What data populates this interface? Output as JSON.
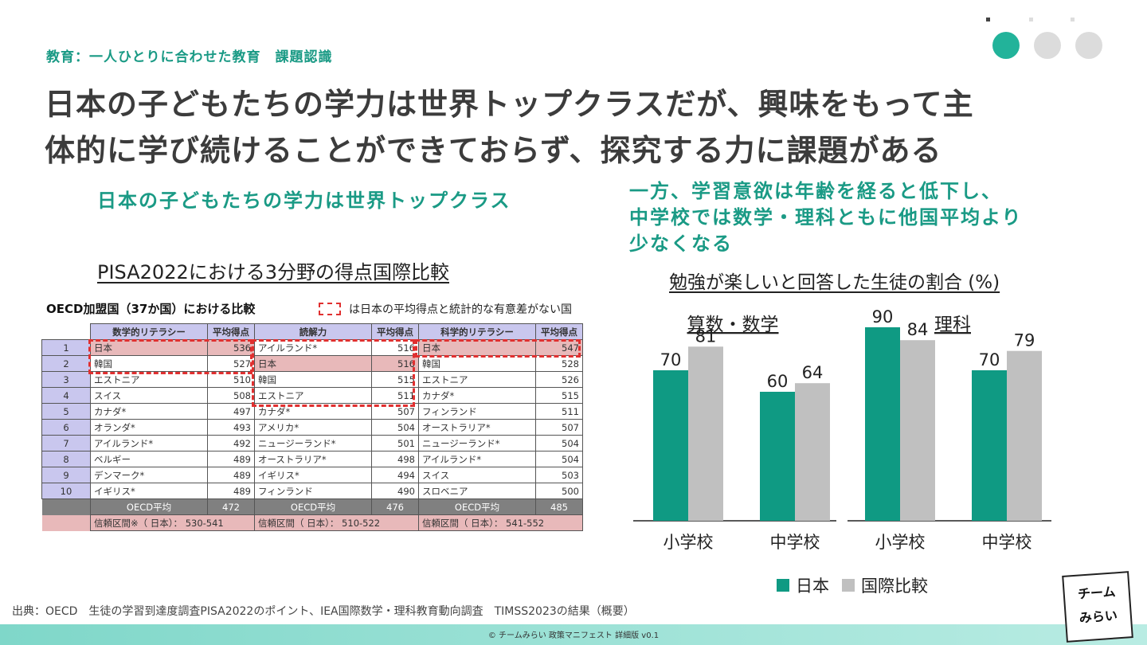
{
  "section_label": "教育：一人ひとりに合わせた教育　課題認識",
  "headline_line1": "日本の子どもたちの学力は世界トップクラスだが、興味をもって主",
  "headline_line2": "体的に学び続けることができておらず、探究する力に課題がある",
  "sub_left": "日本の子どもたちの学力は世界トップクラス",
  "sub_right_1": "一方、学習意欲は年齢を経ると低下し、",
  "sub_right_2": "中学校では数学・理科ともに他国平均より",
  "sub_right_3": "少なくなる",
  "pisa_title": "PISA2022における3分野の得点国際比較",
  "table": {
    "caption": "OECD加盟国（37か国）における比較",
    "legend": "は日本の平均得点と統計的な有意差がない国",
    "headers": [
      "数学的リテラシー",
      "平均得点",
      "読解力",
      "平均得点",
      "科学的リテラシー",
      "平均得点"
    ],
    "rows": [
      [
        "1",
        "日本",
        "536",
        "アイルランド*",
        "516",
        "日本",
        "547"
      ],
      [
        "2",
        "韓国",
        "527",
        "日本",
        "516",
        "韓国",
        "528"
      ],
      [
        "3",
        "エストニア",
        "510",
        "韓国",
        "515",
        "エストニア",
        "526"
      ],
      [
        "4",
        "スイス",
        "508",
        "エストニア",
        "511",
        "カナダ*",
        "515"
      ],
      [
        "5",
        "カナダ*",
        "497",
        "カナダ*",
        "507",
        "フィンランド",
        "511"
      ],
      [
        "6",
        "オランダ*",
        "493",
        "アメリカ*",
        "504",
        "オーストラリア*",
        "507"
      ],
      [
        "7",
        "アイルランド*",
        "492",
        "ニュージーランド*",
        "501",
        "ニュージーランド*",
        "504"
      ],
      [
        "8",
        "ベルギー",
        "489",
        "オーストラリア*",
        "498",
        "アイルランド*",
        "504"
      ],
      [
        "9",
        "デンマーク*",
        "489",
        "イギリス*",
        "494",
        "スイス",
        "503"
      ],
      [
        "10",
        "イギリス*",
        "489",
        "フィンランド",
        "490",
        "スロベニア",
        "500"
      ]
    ],
    "avg_row": [
      "OECD平均",
      "472",
      "OECD平均",
      "476",
      "OECD平均",
      "485"
    ],
    "ci_row": [
      "信頼区間※（ 日本）： 530-541",
      "信頼区間（ 日本）： 510-522",
      "信頼区間（ 日本）： 541-552"
    ]
  },
  "chart_title": "勉強が楽しいと回答した生徒の割合 (%)",
  "chart_data": {
    "type": "bar",
    "groups": [
      {
        "name": "算数・数学",
        "categories": [
          "小学校",
          "中学校"
        ],
        "japan": [
          70,
          60
        ],
        "international": [
          81,
          64
        ]
      },
      {
        "name": "理科",
        "categories": [
          "小学校",
          "中学校"
        ],
        "japan": [
          90,
          70
        ],
        "international": [
          84,
          79
        ]
      }
    ],
    "legend": [
      "日本",
      "国際比較"
    ],
    "colors": {
      "japan": "#0f9a83",
      "international": "#c0c0c0"
    }
  },
  "source": "出典：OECD　生徒の学習到達度調査PISA2022のポイント、IEA国際数学・理科教育動向調査　TIMSS2023の結果（概要）",
  "footer": "© チームみらい 政策マニフェスト 詳細版 v0.1",
  "logo_line1": "チーム",
  "logo_line2": "みらい"
}
